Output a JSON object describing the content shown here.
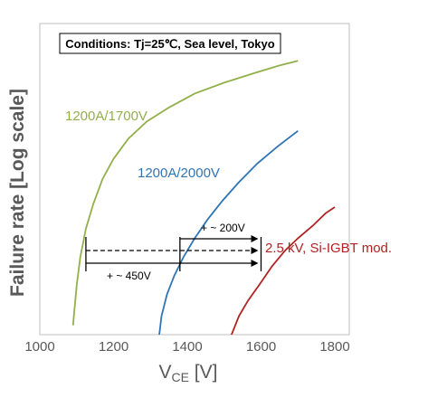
{
  "chart_data": {
    "type": "line",
    "conditions": "Conditions: Tj=25℃, Sea level, Tokyo",
    "xlabel_main": "V",
    "xlabel_sub": "CE",
    "xlabel_unit": " [V]",
    "ylabel": "Failure rate [Log scale]",
    "xlim": [
      1000,
      1800
    ],
    "xticks": [
      "1000",
      "1200",
      "1400",
      "1600",
      "1800"
    ],
    "series": [
      {
        "name": "1200A/1700V",
        "color": "#92b04a",
        "x": [
          1090,
          1100,
          1110,
          1125,
          1145,
          1170,
          1200,
          1240,
          1290,
          1350,
          1420,
          1500,
          1580,
          1650,
          1700
        ],
        "y": [
          0.03,
          0.16,
          0.25,
          0.34,
          0.42,
          0.5,
          0.565,
          0.63,
          0.685,
          0.73,
          0.775,
          0.81,
          0.84,
          0.865,
          0.88
        ]
      },
      {
        "name": "1200A/2000V",
        "color": "#2e75b6",
        "x": [
          1315,
          1322,
          1330,
          1345,
          1365,
          1390,
          1420,
          1455,
          1495,
          1540,
          1590,
          1645,
          1700
        ],
        "y": [
          -0.16,
          -0.02,
          0.06,
          0.13,
          0.19,
          0.25,
          0.31,
          0.37,
          0.43,
          0.49,
          0.55,
          0.605,
          0.655
        ]
      },
      {
        "name": "2.5 kV, Si-IGBT mod.",
        "color": "#b22222",
        "x": [
          1490,
          1505,
          1520,
          1540,
          1565,
          1595,
          1630,
          1665,
          1700,
          1740,
          1775,
          1800
        ],
        "y": [
          -0.16,
          -0.07,
          0.0,
          0.06,
          0.11,
          0.16,
          0.22,
          0.27,
          0.31,
          0.35,
          0.39,
          0.41
        ]
      }
    ],
    "annotations": [
      {
        "text": "+ ~ 200V",
        "from_x": 1380,
        "to_x": 1590
      },
      {
        "text": "+ ~ 450V",
        "from_x": 1125,
        "to_x": 1590
      }
    ]
  }
}
